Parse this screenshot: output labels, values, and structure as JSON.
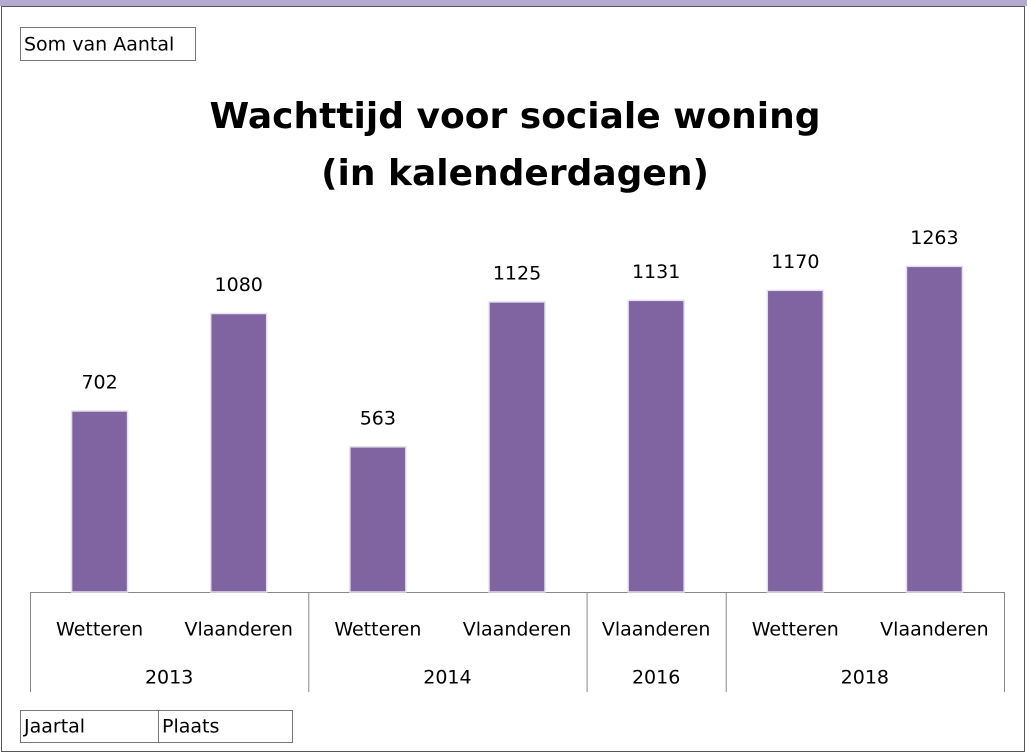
{
  "chart_data": {
    "type": "bar",
    "title": [
      "Wachttijd voor sociale woning",
      "(in kalenderdagen)"
    ],
    "value_field": "Som van Aantal",
    "axis_fields": [
      "Jaartal",
      "Plaats"
    ],
    "groups": [
      {
        "name": "2013",
        "categories": [
          "Wetteren",
          "Vlaanderen"
        ]
      },
      {
        "name": "2014",
        "categories": [
          "Wetteren",
          "Vlaanderen"
        ]
      },
      {
        "name": "2016",
        "categories": [
          "Vlaanderen"
        ]
      },
      {
        "name": "2018",
        "categories": [
          "Wetteren",
          "Vlaanderen"
        ]
      }
    ],
    "values": [
      702,
      1080,
      563,
      1125,
      1131,
      1170,
      1263
    ],
    "color": "#8064a2",
    "ylim": [
      0,
      1400
    ]
  }
}
